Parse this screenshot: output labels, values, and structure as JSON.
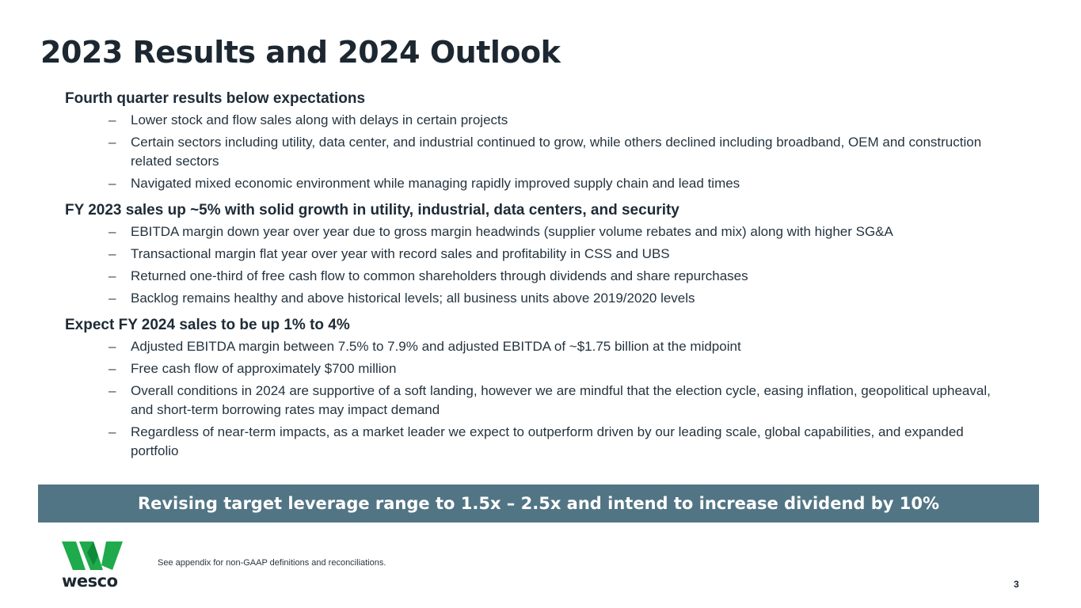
{
  "title": "2023 Results and 2024 Outlook",
  "sections": [
    {
      "heading": "Fourth quarter results below expectations",
      "bullets": [
        "Lower stock and flow sales along with delays in certain projects",
        "Certain sectors including utility, data center, and industrial continued to grow, while others declined including broadband, OEM and construction related sectors",
        "Navigated mixed economic environment while managing rapidly improved supply chain and lead times"
      ]
    },
    {
      "heading": "FY 2023 sales up ~5% with solid growth in utility, industrial, data centers, and security",
      "bullets": [
        "EBITDA margin down year over year due to gross margin headwinds (supplier volume rebates and mix) along with higher SG&A",
        "Transactional margin flat year over year with record sales and profitability in CSS and UBS",
        "Returned one-third of free cash flow to common shareholders through dividends and share repurchases",
        "Backlog remains healthy and above historical levels; all business units above 2019/2020 levels"
      ]
    },
    {
      "heading": "Expect FY 2024 sales to be up 1% to 4%",
      "bullets": [
        "Adjusted EBITDA margin between 7.5% to 7.9% and adjusted EBITDA of ~$1.75 billion at the midpoint",
        "Free cash flow of approximately $700 million",
        "Overall conditions in 2024 are supportive of a soft landing, however we are mindful that the election cycle, easing inflation, geopolitical upheaval, and short-term borrowing rates may impact demand",
        "Regardless of near-term impacts, as a market leader we expect to outperform driven by our leading scale, global capabilities, and expanded portfolio"
      ]
    }
  ],
  "bullet_marker": "–",
  "banner": "Revising target leverage range to 1.5x – 2.5x and intend to increase dividend by 10%",
  "logo": {
    "text": "wesco",
    "icon": "wesco-w-logo-icon",
    "color": "#1faa4b"
  },
  "footnote": "See appendix for non-GAAP definitions and reconciliations.",
  "page_number": "3",
  "colors": {
    "banner": "#527585",
    "title": "#1c2731"
  }
}
